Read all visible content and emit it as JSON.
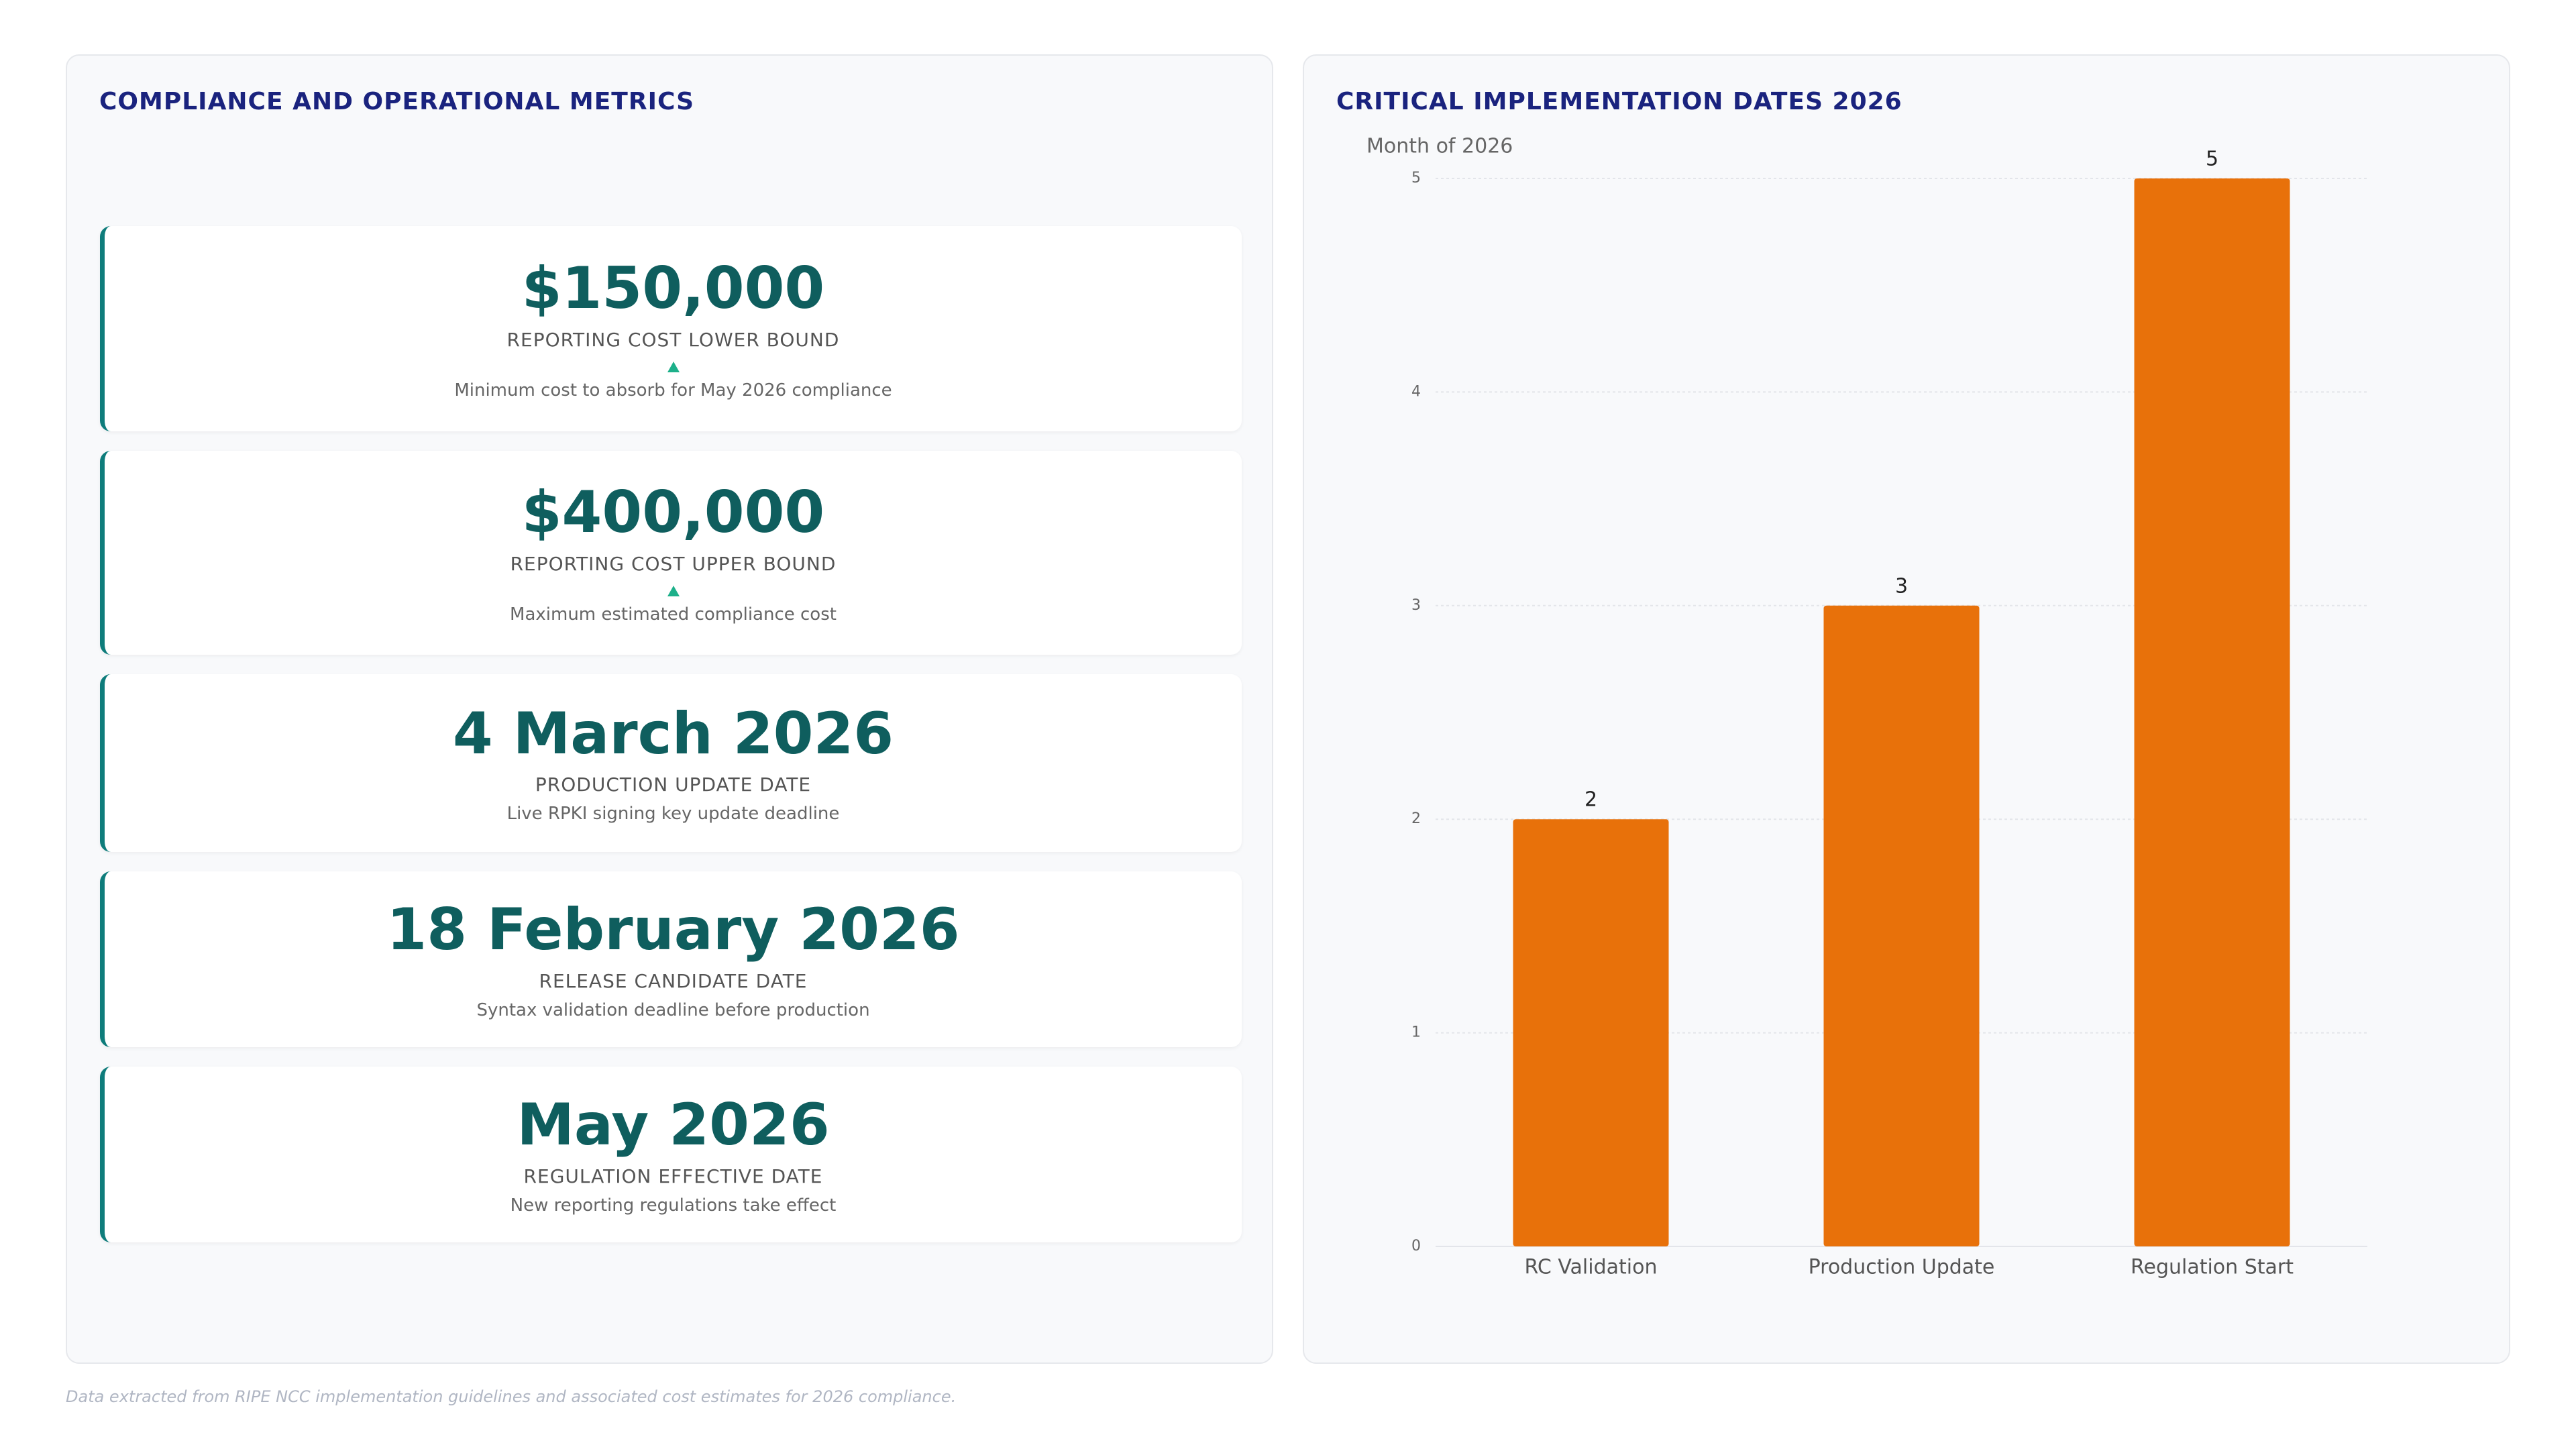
{
  "metrics_panel": {
    "title": "COMPLIANCE AND OPERATIONAL METRICS",
    "cards": [
      {
        "value": "$150,000",
        "label": "REPORTING COST LOWER BOUND",
        "note": "Minimum cost to absorb for May 2026 compliance"
      },
      {
        "value": "$400,000",
        "label": "REPORTING COST UPPER BOUND",
        "note": "Maximum estimated compliance cost"
      },
      {
        "value": "4 March 2026",
        "label": "PRODUCTION UPDATE DATE",
        "note": "Live RPKI signing key update deadline"
      },
      {
        "value": "18 February 2026",
        "label": "RELEASE CANDIDATE DATE",
        "note": "Syntax validation deadline before production"
      },
      {
        "value": "May 2026",
        "label": "REGULATION EFFECTIVE DATE",
        "note": "New reporting regulations take effect"
      }
    ]
  },
  "chart_data": {
    "type": "bar",
    "title": "CRITICAL IMPLEMENTATION DATES 2026",
    "y_label": "Month of 2026",
    "categories": [
      "RC Validation",
      "Production Update",
      "Regulation Start"
    ],
    "values": [
      2,
      3,
      5
    ],
    "color": "#e8710a",
    "ylim": [
      0,
      5
    ],
    "yticks": [
      0,
      1,
      2,
      3,
      4,
      5
    ],
    "grid": true
  },
  "footer": "Data extracted from RIPE NCC implementation guidelines and associated cost estimates for 2026 compliance."
}
